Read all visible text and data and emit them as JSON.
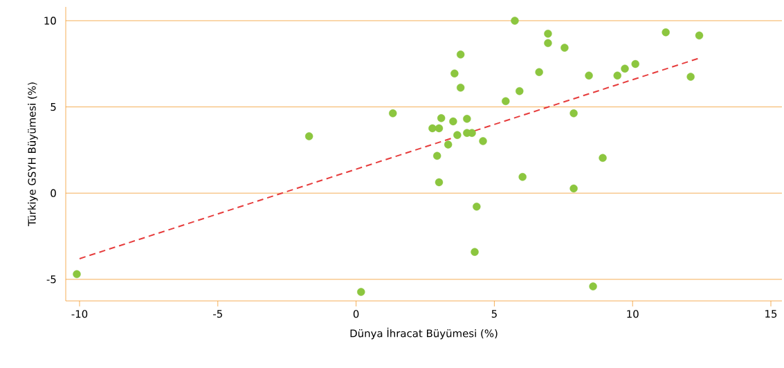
{
  "chart_data": {
    "type": "scatter",
    "xlabel": "Dünya İhracat Büyümesi (%)",
    "ylabel": "Türkiye GSYH Büyümesi (%)",
    "xlim": [
      -10.5,
      15.4
    ],
    "ylim": [
      -6.25,
      10.8
    ],
    "xticks": [
      -10,
      -5,
      0,
      5,
      10,
      15
    ],
    "yticks": [
      -5,
      0,
      5,
      10
    ],
    "grid": "y",
    "series": [
      {
        "marker": "circle",
        "color": "#8cc63f",
        "x": [
          -10.1,
          -1.7,
          0.18,
          1.33,
          2.76,
          3.0,
          3.08,
          2.93,
          3.0,
          3.33,
          3.51,
          3.56,
          3.66,
          3.78,
          3.78,
          4.01,
          4.01,
          4.19,
          4.29,
          4.36,
          4.59,
          5.41,
          5.74,
          5.91,
          6.02,
          6.62,
          6.94,
          6.94,
          7.54,
          7.87,
          7.87,
          8.42,
          8.57,
          8.92,
          9.45,
          9.72,
          10.1,
          11.2,
          12.1,
          12.41
        ],
        "values": [
          -4.7,
          3.3,
          -5.73,
          4.63,
          3.76,
          3.76,
          4.35,
          2.16,
          0.63,
          2.82,
          4.16,
          6.94,
          3.37,
          8.04,
          6.12,
          4.31,
          3.49,
          3.49,
          -3.41,
          -0.78,
          3.02,
          5.33,
          10.0,
          5.92,
          0.94,
          7.02,
          9.25,
          8.7,
          8.43,
          4.63,
          0.27,
          6.82,
          -5.41,
          2.04,
          6.82,
          7.22,
          7.49,
          9.33,
          6.75,
          9.14
        ]
      },
      {
        "type": "line",
        "color": "#e63c3c",
        "line_style": "dashed",
        "marker": "none",
        "x": [
          -10.0,
          12.43
        ],
        "values": [
          -3.8,
          7.84
        ]
      }
    ]
  }
}
